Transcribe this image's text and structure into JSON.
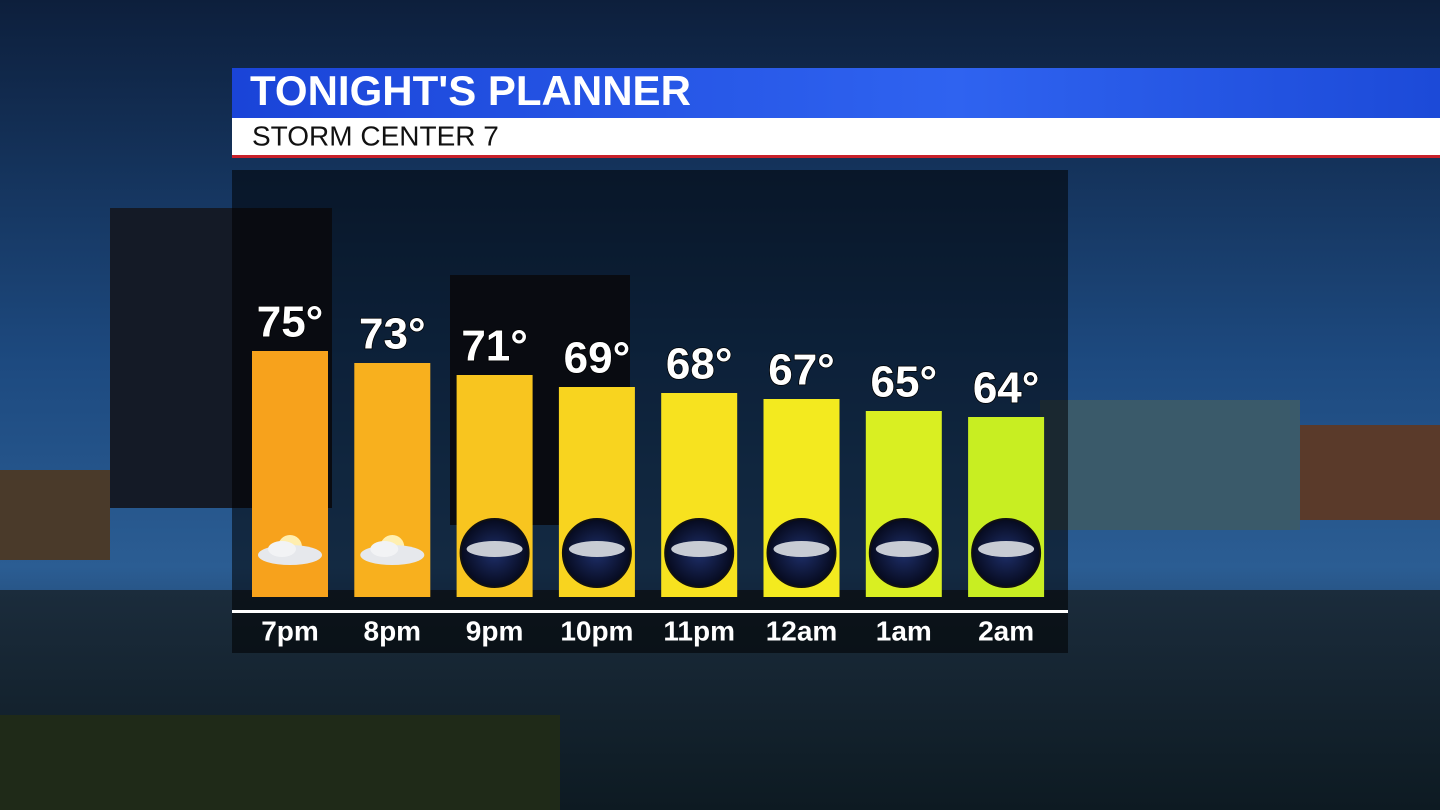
{
  "chart_data": {
    "type": "bar",
    "title": "TONIGHT'S PLANNER",
    "subtitle": "STORM CENTER 7",
    "categories": [
      "7pm",
      "8pm",
      "9pm",
      "10pm",
      "11pm",
      "12am",
      "1am",
      "2am"
    ],
    "values": [
      75,
      73,
      71,
      69,
      68,
      67,
      65,
      64
    ],
    "value_labels": [
      "75°",
      "73°",
      "71°",
      "69°",
      "68°",
      "67°",
      "65°",
      "64°"
    ],
    "colors": [
      "#f7a21c",
      "#f8b01e",
      "#f8c51f",
      "#f8d41f",
      "#f7e21f",
      "#f3ea1f",
      "#d9ef22",
      "#c8ee22"
    ],
    "icons": [
      "sun-cloud",
      "sun-cloud",
      "moon-cloud",
      "moon-cloud",
      "moon-cloud",
      "moon-cloud",
      "moon-cloud",
      "moon-cloud"
    ]
  }
}
